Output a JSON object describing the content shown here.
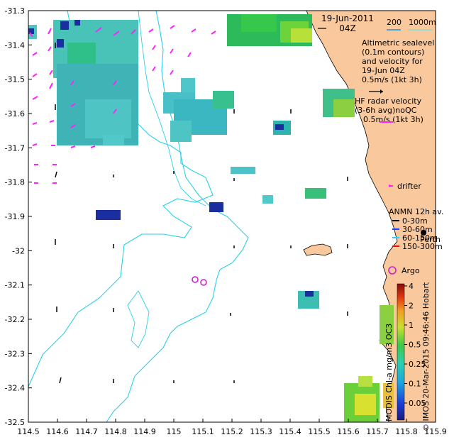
{
  "title": {
    "date": "19-Jun-2011",
    "time": "04Z"
  },
  "depth_legend": {
    "label_200": "200",
    "label_1000": "1000m",
    "color_200": "#1c8fd8",
    "color_1000": "#7fe0d8"
  },
  "altimetry_note": [
    "Altimetric sealevel",
    "(0.1m contours)",
    "and velocity for",
    "19-Jun 04Z",
    "0.5m/s (1kt 3h)"
  ],
  "hf_radar_note": [
    "HF radar velocity",
    "(3-6h avg)noQC",
    "0.5m/s (1kt 3h)"
  ],
  "drifter_label": "drifter",
  "anmn": {
    "title": "ANMN 12h av.",
    "items": [
      {
        "label": "0-30m",
        "color": "#000000"
      },
      {
        "label": "30-60m",
        "color": "#1a3cff"
      },
      {
        "label": "60-150m",
        "color": "#19d8ff"
      },
      {
        "label": "150-300m",
        "color": "#e01010"
      }
    ]
  },
  "perth_label": "Perth",
  "argo_label": "Argo",
  "colorbar": {
    "title": "MODIS Chl-a mg/m3 OC3",
    "ticks": [
      "0.05",
      "0.1",
      "0.25",
      "0.5",
      "1",
      "2",
      "4"
    ]
  },
  "credit": "© IMOS 20-Mar-2015 09:46:46 Hobart",
  "axes": {
    "x_ticks": [
      "114.5",
      "114.6",
      "114.7",
      "114.8",
      "114.9",
      "115",
      "115.1",
      "115.2",
      "115.3",
      "115.4",
      "115.5",
      "115.6",
      "115.7",
      "115.8",
      "115.9"
    ],
    "y_ticks": [
      "-31.3",
      "-31.4",
      "-31.5",
      "-31.6",
      "-31.7",
      "-31.8",
      "-31.9",
      "-32",
      "-32.1",
      "-32.2",
      "-32.3",
      "-32.4",
      "-32.5"
    ],
    "x_range": [
      114.5,
      115.9
    ],
    "y_range": [
      -32.5,
      -31.3
    ]
  },
  "colors": {
    "land": "#f9c89c",
    "ocean": "#ffffff",
    "contour": "#27d1e6",
    "hf_arrow": "#ff22ff",
    "argo": "#d020d0"
  }
}
